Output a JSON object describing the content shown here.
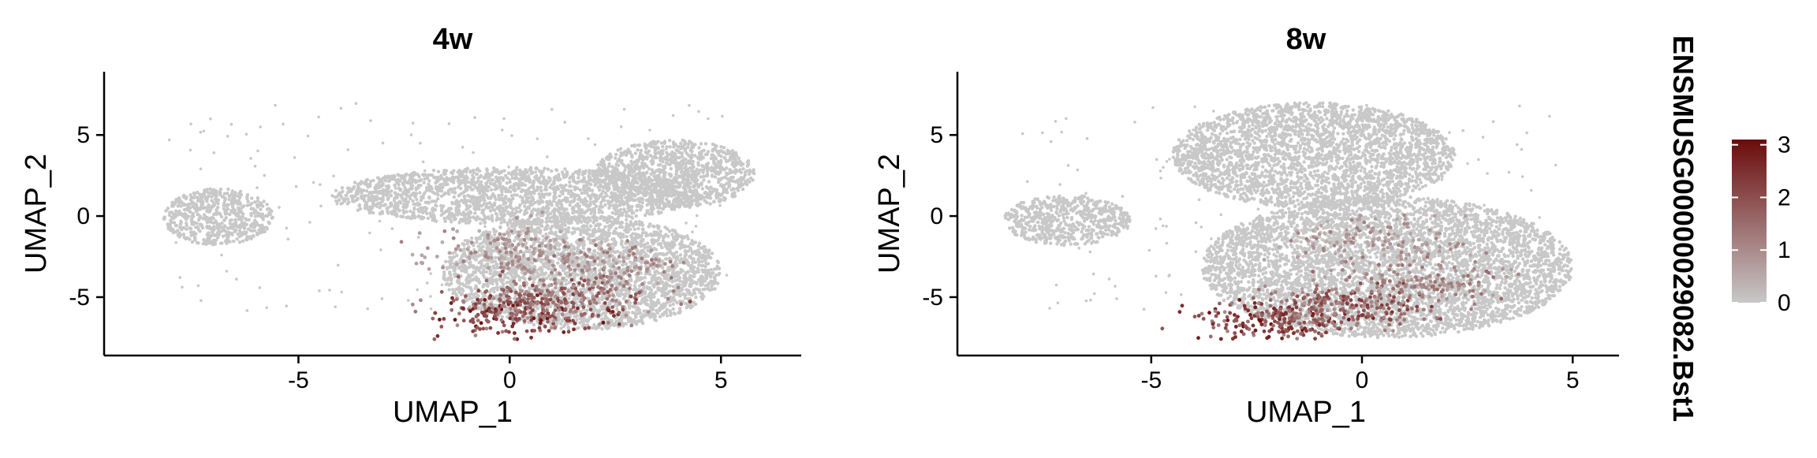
{
  "chart_data": [
    {
      "type": "scatter",
      "title": "4w",
      "xlabel": "UMAP_1",
      "ylabel": "UMAP_2",
      "xlim": [
        -9.6,
        6.9
      ],
      "ylim": [
        -8.6,
        8.9
      ],
      "xticks": [
        -5,
        0,
        5
      ],
      "yticks": [
        -5,
        0,
        5
      ],
      "xtick_labels": [
        "-5",
        "0",
        "5"
      ],
      "ytick_labels": [
        "-5",
        "0",
        "5"
      ],
      "grid": false,
      "background_points_color": "#c8c8c8",
      "cluster_regions": [
        {
          "label": "left island",
          "x": [
            -8.2,
            -5.6
          ],
          "y": [
            -1.8,
            1.7
          ]
        },
        {
          "label": "upper-right lobe",
          "x": [
            2.0,
            5.8
          ],
          "y": [
            0.5,
            4.7
          ]
        },
        {
          "label": "middle band",
          "x": [
            -4.2,
            4.5
          ],
          "y": [
            -0.5,
            3.0
          ]
        },
        {
          "label": "lower body",
          "x": [
            -1.6,
            5.0
          ],
          "y": [
            -7.0,
            0.0
          ]
        }
      ],
      "expression_hotspots": [
        {
          "x": 0.3,
          "y": -6.0,
          "level": 2.5
        },
        {
          "x": 1.2,
          "y": -5.0,
          "level": 1.8
        },
        {
          "x": 2.2,
          "y": -3.0,
          "level": 1.2
        },
        {
          "x": 0.0,
          "y": -2.0,
          "level": 1.0
        }
      ]
    },
    {
      "type": "scatter",
      "title": "8w",
      "xlabel": "UMAP_1",
      "ylabel": "UMAP_2",
      "xlim": [
        -9.6,
        6.1
      ],
      "ylim": [
        -8.6,
        8.9
      ],
      "xticks": [
        -5,
        0,
        5
      ],
      "yticks": [
        -5,
        0,
        5
      ],
      "xtick_labels": [
        "-5",
        "0",
        "5"
      ],
      "ytick_labels": [
        "-5",
        "0",
        "5"
      ],
      "grid": false,
      "background_points_color": "#c8c8c8",
      "cluster_regions": [
        {
          "label": "left island",
          "x": [
            -8.5,
            -5.5
          ],
          "y": [
            -1.8,
            1.3
          ]
        },
        {
          "label": "upper lobe",
          "x": [
            -4.5,
            2.2
          ],
          "y": [
            0.5,
            7.0
          ]
        },
        {
          "label": "lower body",
          "x": [
            -3.8,
            5.0
          ],
          "y": [
            -7.5,
            1.2
          ]
        }
      ],
      "expression_hotspots": [
        {
          "x": -2.0,
          "y": -6.5,
          "level": 2.5
        },
        {
          "x": -0.3,
          "y": -5.5,
          "level": 2.0
        },
        {
          "x": 1.5,
          "y": -4.0,
          "level": 1.3
        },
        {
          "x": 0.5,
          "y": -1.5,
          "level": 1.0
        }
      ]
    }
  ],
  "legend": {
    "title": "ENSMUSG00000029082.Bst1",
    "min": 0,
    "max": 3.1,
    "ticks": [
      0,
      1,
      2,
      3
    ],
    "tick_labels": [
      "0",
      "1",
      "2",
      "3"
    ],
    "color_low": "#c8c8c8",
    "color_high": "#6b0b0b",
    "placement": "right"
  }
}
